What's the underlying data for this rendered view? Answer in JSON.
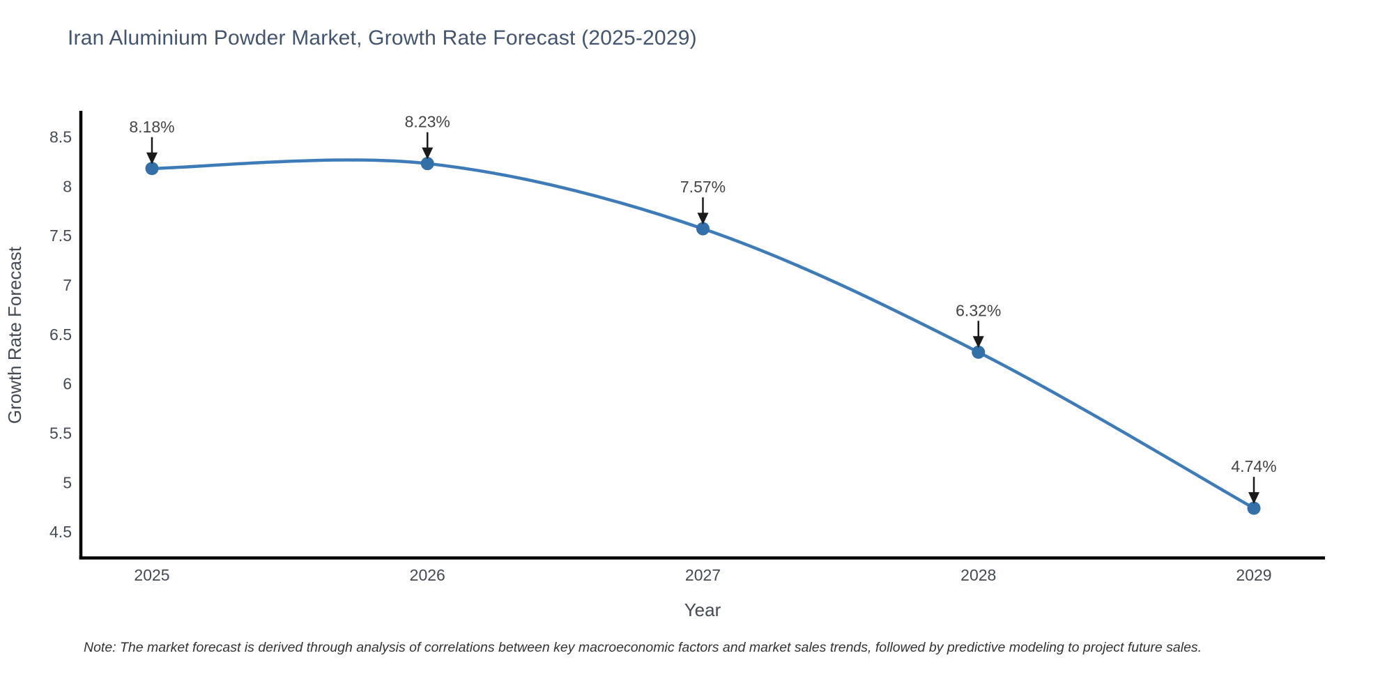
{
  "title": "Iran Aluminium Powder Market, Growth Rate Forecast (2025-2029)",
  "note": "Note: The market forecast is derived through analysis of correlations between key macroeconomic factors and market sales trends, followed by predictive modeling to project future sales.",
  "colors": {
    "title": "#42546e",
    "axis_line": "#000000",
    "tick_text": "#444a54",
    "line": "#3d7cb8",
    "marker": "#336fa8",
    "annotation_text": "#444444",
    "arrow": "#1a1a1a",
    "background": "#ffffff"
  },
  "chart_data": {
    "type": "line",
    "title": "Iran Aluminium Powder Market, Growth Rate Forecast (2025-2029)",
    "xlabel": "Year",
    "ylabel": "Growth Rate Forecast",
    "categories": [
      2025,
      2026,
      2027,
      2028,
      2029
    ],
    "values": [
      8.18,
      8.23,
      7.57,
      6.32,
      4.74
    ],
    "point_labels": [
      "8.18%",
      "8.23%",
      "7.57%",
      "6.32%",
      "4.74%"
    ],
    "y_ticks": [
      8.5,
      8,
      7.5,
      7,
      6.5,
      6,
      5.5,
      5,
      4.5
    ],
    "ylim": [
      4.24,
      8.75
    ],
    "grid": false,
    "legend": "none",
    "line_shape": "spline",
    "annotations": "value labels with downward arrows above each data point"
  }
}
